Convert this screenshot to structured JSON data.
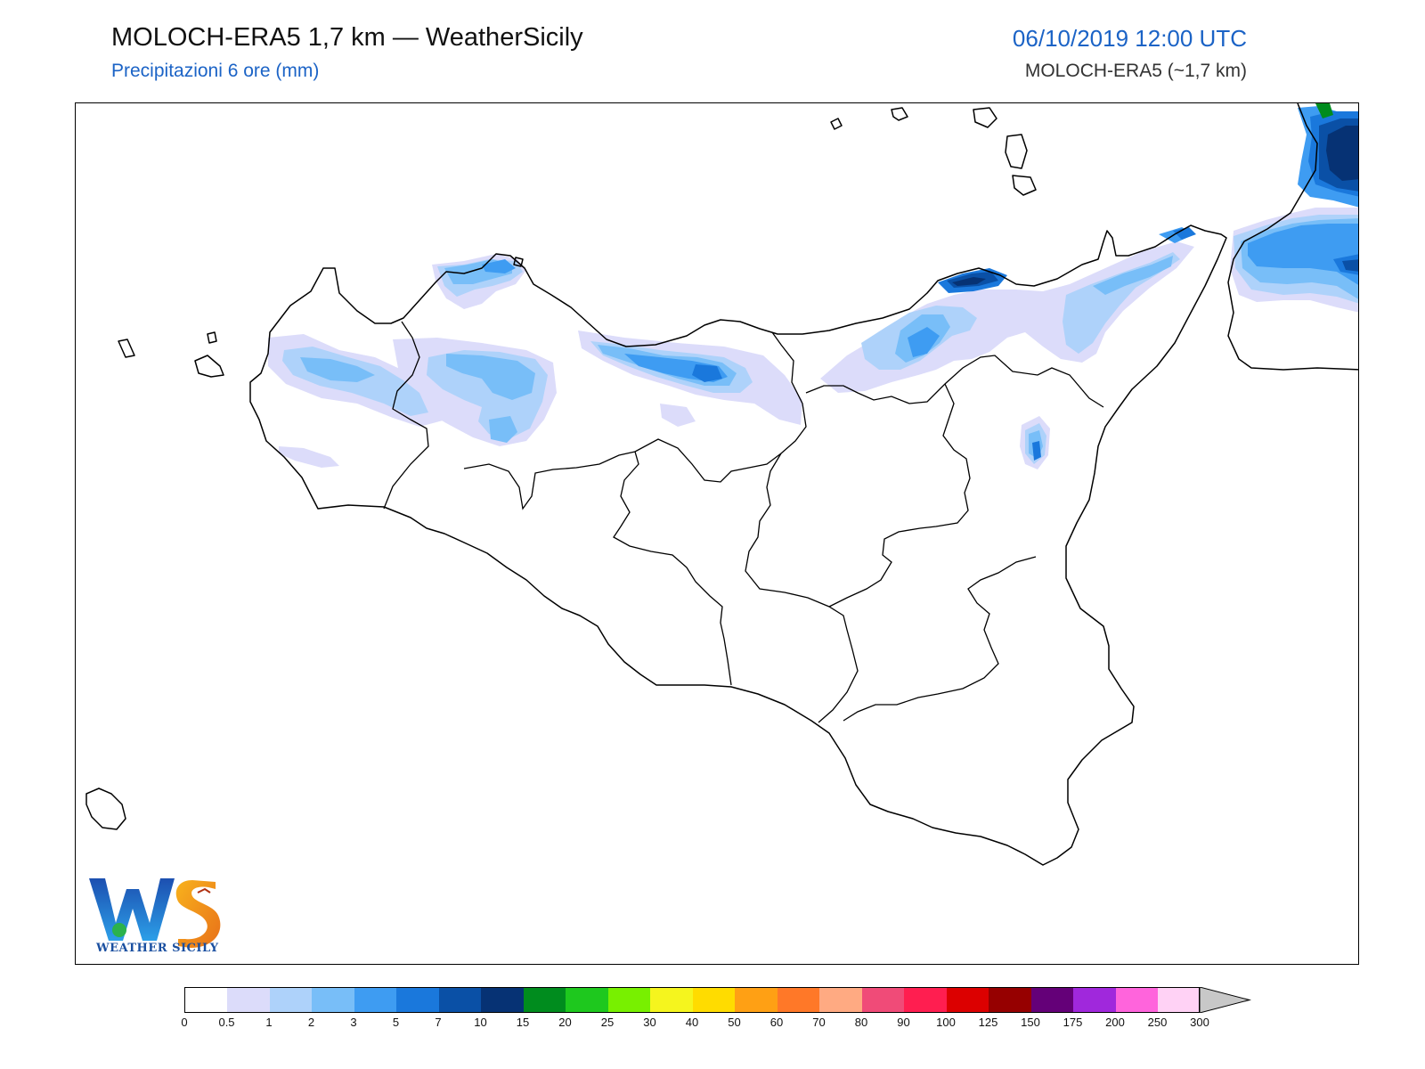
{
  "header": {
    "title": "MOLOCH-ERA5 1,7 km — WeatherSicily",
    "subtitle": "Precipitazioni 6 ore (mm)",
    "datetime": "06/10/2019 12:00 UTC",
    "model": "MOLOCH-ERA5 (~1,7 km)"
  },
  "logo": {
    "letters": "WS",
    "text": "WEATHER SICILY"
  },
  "colorbar": {
    "ticks": [
      "0",
      "0.5",
      "1",
      "2",
      "3",
      "5",
      "7",
      "10",
      "15",
      "20",
      "25",
      "30",
      "40",
      "50",
      "60",
      "70",
      "80",
      "90",
      "100",
      "125",
      "150",
      "175",
      "200",
      "250",
      "300"
    ],
    "colors": [
      "#ffffff",
      "#dcdcfa",
      "#aed2fa",
      "#78bef8",
      "#3e9cf2",
      "#1a78dc",
      "#0a50a6",
      "#063274",
      "#008c1e",
      "#1ec81e",
      "#78f000",
      "#f5f51e",
      "#ffdc00",
      "#ffa014",
      "#ff7828",
      "#ffaa82",
      "#f04b78",
      "#ff1e50",
      "#dc0000",
      "#960000",
      "#640078",
      "#a028dc",
      "#ff64dc",
      "#ffd2f5"
    ],
    "extend_color": "#c8c8c8"
  },
  "map_colors": {
    "coast": "#000000",
    "p_0_5": "#dcdcfa",
    "p_1": "#aed2fa",
    "p_2": "#78bef8",
    "p_3": "#3e9cf2",
    "p_5": "#1a78dc",
    "p_7": "#0a50a6",
    "p_10": "#063274",
    "p_15": "#008c1e"
  }
}
